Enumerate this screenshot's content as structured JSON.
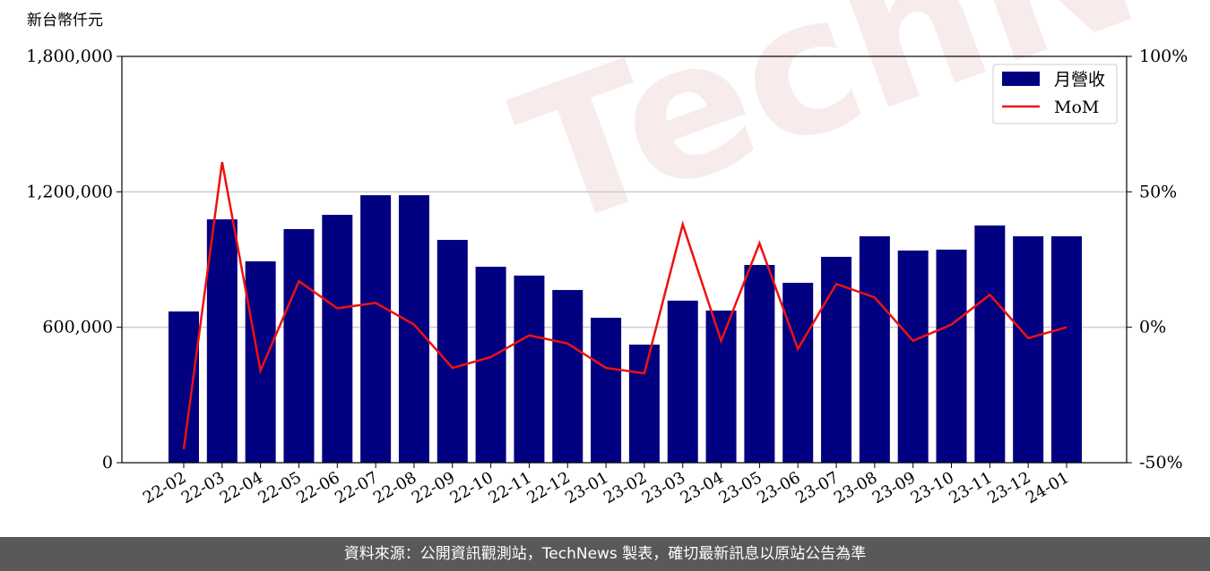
{
  "chart_data": {
    "type": "bar-line",
    "y_label": "新台幣仟元",
    "watermark": "TechNews",
    "categories": [
      "22-02",
      "22-03",
      "22-04",
      "22-05",
      "22-06",
      "22-07",
      "22-08",
      "22-09",
      "22-10",
      "22-11",
      "22-12",
      "23-01",
      "23-02",
      "23-03",
      "23-04",
      "23-05",
      "23-06",
      "23-07",
      "23-08",
      "23-09",
      "23-10",
      "23-11",
      "23-12",
      "24-01"
    ],
    "series": [
      {
        "name": "月營收",
        "color": "#000080",
        "values": [
          670000,
          1078000,
          892000,
          1035000,
          1098000,
          1185000,
          1185000,
          987000,
          868000,
          829000,
          765000,
          642000,
          523000,
          718000,
          674000,
          876000,
          797000,
          912000,
          1003000,
          940000,
          944000,
          1051000,
          1003000,
          1003000
        ]
      },
      {
        "name": "MoM",
        "color": "#ee1111",
        "axis": "y2",
        "values": [
          -45,
          61,
          -16,
          17,
          7,
          9,
          1,
          -15,
          -11,
          -3,
          -6,
          -15,
          -17,
          38,
          -5,
          31,
          -8,
          16,
          11,
          -5,
          1,
          12,
          -4,
          0
        ]
      }
    ],
    "ylim": [
      0,
      1800000
    ],
    "yticks": [
      0,
      {
        "value": 600000,
        "label": "600,000"
      },
      {
        "value": 1200000,
        "label": "1,200,000"
      },
      {
        "value": 1800000,
        "label": "1,800,000"
      }
    ],
    "y2lim": [
      -50,
      100
    ],
    "y2ticks": [
      {
        "value": -50,
        "label": "-50%"
      },
      {
        "value": 0,
        "label": "0%"
      },
      {
        "value": 50,
        "label": "50%"
      },
      {
        "value": 100,
        "label": "100%"
      }
    ],
    "grid": true,
    "legend": "upper-right"
  },
  "footer": "資料來源：公開資訊觀測站，TechNews 製表，確切最新訊息以原站公告為準"
}
